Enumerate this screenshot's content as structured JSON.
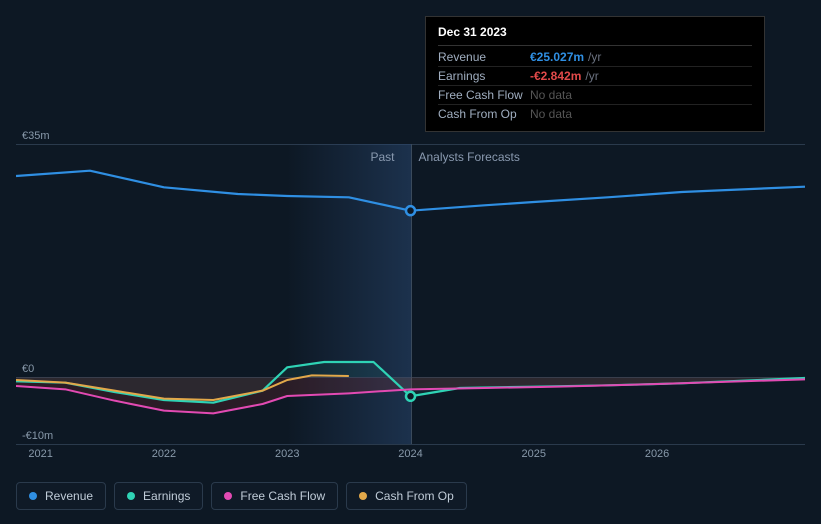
{
  "tooltip": {
    "date": "Dec 31 2023",
    "rows": [
      {
        "label": "Revenue",
        "value": "€25.027m",
        "unit": "/yr",
        "color": "#2f8fe3",
        "nodata": false
      },
      {
        "label": "Earnings",
        "value": "-€2.842m",
        "unit": "/yr",
        "color": "#e24a4a",
        "nodata": false
      },
      {
        "label": "Free Cash Flow",
        "value": "No data",
        "unit": "",
        "color": "#555555",
        "nodata": true
      },
      {
        "label": "Cash From Op",
        "value": "No data",
        "unit": "",
        "color": "#555555",
        "nodata": true
      }
    ]
  },
  "chart": {
    "type": "line",
    "background_color": "#0d1824",
    "grid_color": "#2a3a4c",
    "divider_color": "#3a4a5c",
    "highlight_band_x": [
      2023,
      2024
    ],
    "xlim": [
      2020.8,
      2027.2
    ],
    "ylim": [
      -10,
      35
    ],
    "y_ticks": [
      {
        "v": 35,
        "label": "€35m"
      },
      {
        "v": 0,
        "label": "€0"
      },
      {
        "v": -10,
        "label": "-€10m"
      }
    ],
    "x_ticks": [
      {
        "v": 2021,
        "label": "2021"
      },
      {
        "v": 2022,
        "label": "2022"
      },
      {
        "v": 2023,
        "label": "2023"
      },
      {
        "v": 2024,
        "label": "2024"
      },
      {
        "v": 2025,
        "label": "2025"
      },
      {
        "v": 2026,
        "label": "2026"
      }
    ],
    "past_label": "Past",
    "forecast_label": "Analysts Forecasts",
    "divider_x": 2024,
    "marker_x": 2024,
    "series": [
      {
        "name": "Revenue",
        "color": "#2f8fe3",
        "fill": false,
        "line_width": 2.2,
        "marker": true,
        "marker_y": 25.0,
        "points": [
          [
            2020.8,
            30.2
          ],
          [
            2021.4,
            31.0
          ],
          [
            2022.0,
            28.5
          ],
          [
            2022.6,
            27.5
          ],
          [
            2023.0,
            27.2
          ],
          [
            2023.5,
            27.0
          ],
          [
            2024.0,
            25.0
          ],
          [
            2024.6,
            25.8
          ],
          [
            2025.0,
            26.3
          ],
          [
            2025.6,
            27.0
          ],
          [
            2026.2,
            27.8
          ],
          [
            2027.2,
            28.6
          ]
        ]
      },
      {
        "name": "Earnings",
        "color": "#2fd3b5",
        "fill": true,
        "fill_color": "rgba(47,211,181,0.08)",
        "line_width": 2.2,
        "marker": true,
        "marker_y": -2.84,
        "points": [
          [
            2020.8,
            -0.6
          ],
          [
            2021.2,
            -0.8
          ],
          [
            2021.6,
            -2.2
          ],
          [
            2022.0,
            -3.4
          ],
          [
            2022.4,
            -3.8
          ],
          [
            2022.8,
            -2.0
          ],
          [
            2023.0,
            1.5
          ],
          [
            2023.3,
            2.3
          ],
          [
            2023.7,
            2.3
          ],
          [
            2024.0,
            -2.84
          ],
          [
            2024.4,
            -1.6
          ],
          [
            2025.0,
            -1.4
          ],
          [
            2025.6,
            -1.2
          ],
          [
            2026.2,
            -0.9
          ],
          [
            2027.2,
            -0.1
          ]
        ]
      },
      {
        "name": "Free Cash Flow",
        "color": "#e24ab3",
        "fill": true,
        "fill_color": "rgba(180,50,50,0.18)",
        "line_width": 2.0,
        "marker": false,
        "points": [
          [
            2020.8,
            -1.3
          ],
          [
            2021.2,
            -1.8
          ],
          [
            2021.6,
            -3.5
          ],
          [
            2022.0,
            -5.0
          ],
          [
            2022.4,
            -5.4
          ],
          [
            2022.8,
            -4.0
          ],
          [
            2023.0,
            -2.8
          ],
          [
            2023.5,
            -2.4
          ],
          [
            2024.0,
            -1.8
          ],
          [
            2024.6,
            -1.6
          ],
          [
            2025.2,
            -1.4
          ],
          [
            2026.0,
            -1.0
          ],
          [
            2027.2,
            -0.3
          ]
        ]
      },
      {
        "name": "Cash From Op",
        "color": "#e2a84a",
        "fill": false,
        "line_width": 2.0,
        "marker": false,
        "points": [
          [
            2020.8,
            -0.4
          ],
          [
            2021.2,
            -0.8
          ],
          [
            2021.6,
            -2.0
          ],
          [
            2022.0,
            -3.2
          ],
          [
            2022.4,
            -3.4
          ],
          [
            2022.8,
            -2.0
          ],
          [
            2023.0,
            -0.4
          ],
          [
            2023.2,
            0.3
          ],
          [
            2023.5,
            0.2
          ]
        ]
      }
    ],
    "legend": [
      {
        "label": "Revenue",
        "color": "#2f8fe3"
      },
      {
        "label": "Earnings",
        "color": "#2fd3b5"
      },
      {
        "label": "Free Cash Flow",
        "color": "#e24ab3"
      },
      {
        "label": "Cash From Op",
        "color": "#e2a84a"
      }
    ]
  }
}
